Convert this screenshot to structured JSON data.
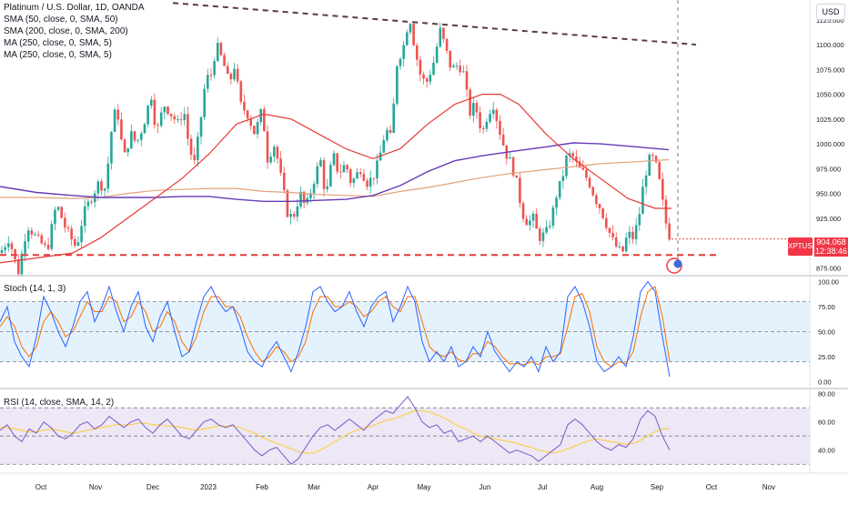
{
  "header": {
    "title": "Platinum / U.S. Dollar, 1D, OANDA",
    "indicators": [
      "SMA (50, close, 0, SMA, 50)",
      "SMA (200, close, 0, SMA, 200)",
      "MA (250, close, 0, SMA, 5)",
      "MA (250, close, 0, SMA, 5)"
    ],
    "currency": "USD"
  },
  "price_tag": {
    "symbol": "XPTUSD",
    "price": "904.068",
    "countdown": "12:38:46"
  },
  "stoch_label": "Stoch (14, 1, 3)",
  "rsi_label": "RSI (14, close, SMA, 14, 2)",
  "colors": {
    "up": "#26a69a",
    "down": "#ef5350",
    "sma50": "#e53935",
    "sma200": "#673ab7",
    "ma250": "#e5a17a",
    "stoch_k": "#2962ff",
    "stoch_d": "#ff6d00",
    "rsi": "#7e57c2",
    "rsi_ma": "#f9d24a",
    "trendline": "#5d3a3a",
    "support": "#e53935",
    "stoch_band": "#e3f2fd",
    "rsi_band": "#ede7f6"
  },
  "chart_data": [
    {
      "type": "candlestick",
      "title": "Platinum / U.S. Dollar, 1D, OANDA",
      "x_ticks": [
        "Oct",
        "Nov",
        "Dec",
        "2023",
        "Feb",
        "Mar",
        "Apr",
        "May",
        "Jun",
        "Jul",
        "Aug",
        "Sep",
        "Oct",
        "Nov"
      ],
      "y_ticks": [
        "875.000",
        "900.000",
        "925.000",
        "950.000",
        "975.000",
        "1000.000",
        "1025.000",
        "1050.000",
        "1075.000",
        "1100.000",
        "1125.000"
      ],
      "ylim": [
        868,
        1145
      ],
      "path": [
        [
          0,
          890
        ],
        [
          10,
          905
        ],
        [
          20,
          870
        ],
        [
          30,
          918
        ],
        [
          40,
          905
        ],
        [
          52,
          893
        ],
        [
          62,
          940
        ],
        [
          72,
          915
        ],
        [
          84,
          895
        ],
        [
          92,
          930
        ],
        [
          100,
          945
        ],
        [
          108,
          960
        ],
        [
          116,
          955
        ],
        [
          122,
          1010
        ],
        [
          128,
          1040
        ],
        [
          136,
          985
        ],
        [
          144,
          1010
        ],
        [
          150,
          1000
        ],
        [
          158,
          1020
        ],
        [
          166,
          1050
        ],
        [
          172,
          1010
        ],
        [
          180,
          1040
        ],
        [
          188,
          1030
        ],
        [
          196,
          1020
        ],
        [
          202,
          1035
        ],
        [
          208,
          995
        ],
        [
          214,
          980
        ],
        [
          220,
          1020
        ],
        [
          226,
          1065
        ],
        [
          232,
          1070
        ],
        [
          238,
          1100
        ],
        [
          246,
          1080
        ],
        [
          252,
          1060
        ],
        [
          258,
          1080
        ],
        [
          264,
          1040
        ],
        [
          272,
          1030
        ],
        [
          280,
          1010
        ],
        [
          288,
          1035
        ],
        [
          294,
          985
        ],
        [
          302,
          1000
        ],
        [
          310,
          960
        ],
        [
          316,
          930
        ],
        [
          322,
          925
        ],
        [
          330,
          950
        ],
        [
          336,
          935
        ],
        [
          344,
          960
        ],
        [
          352,
          985
        ],
        [
          358,
          945
        ],
        [
          366,
          990
        ],
        [
          372,
          970
        ],
        [
          380,
          980
        ],
        [
          386,
          960
        ],
        [
          396,
          975
        ],
        [
          404,
          960
        ],
        [
          412,
          970
        ],
        [
          418,
          990
        ],
        [
          424,
          1015
        ],
        [
          430,
          1005
        ],
        [
          436,
          1080
        ],
        [
          444,
          1100
        ],
        [
          450,
          1130
        ],
        [
          456,
          1095
        ],
        [
          462,
          1070
        ],
        [
          468,
          1060
        ],
        [
          476,
          1080
        ],
        [
          484,
          1115
        ],
        [
          490,
          1095
        ],
        [
          496,
          1075
        ],
        [
          504,
          1080
        ],
        [
          510,
          1070
        ],
        [
          516,
          1030
        ],
        [
          522,
          1040
        ],
        [
          530,
          1010
        ],
        [
          536,
          1030
        ],
        [
          542,
          1040
        ],
        [
          550,
          1010
        ],
        [
          556,
          990
        ],
        [
          562,
          980
        ],
        [
          568,
          960
        ],
        [
          574,
          930
        ],
        [
          580,
          920
        ],
        [
          586,
          925
        ],
        [
          592,
          905
        ],
        [
          600,
          910
        ],
        [
          606,
          925
        ],
        [
          612,
          950
        ],
        [
          618,
          965
        ],
        [
          622,
          985
        ],
        [
          628,
          990
        ],
        [
          636,
          975
        ],
        [
          642,
          970
        ],
        [
          648,
          960
        ],
        [
          654,
          945
        ],
        [
          660,
          935
        ],
        [
          666,
          920
        ],
        [
          672,
          905
        ],
        [
          678,
          895
        ],
        [
          684,
          890
        ],
        [
          690,
          910
        ],
        [
          696,
          905
        ],
        [
          702,
          925
        ],
        [
          708,
          965
        ],
        [
          714,
          985
        ],
        [
          718,
          985
        ],
        [
          722,
          975
        ],
        [
          726,
          955
        ],
        [
          730,
          930
        ],
        [
          734,
          910
        ],
        [
          738,
          904
        ]
      ],
      "sma50": [
        [
          0,
          880
        ],
        [
          40,
          885
        ],
        [
          80,
          890
        ],
        [
          110,
          905
        ],
        [
          140,
          925
        ],
        [
          170,
          945
        ],
        [
          200,
          965
        ],
        [
          230,
          990
        ],
        [
          260,
          1020
        ],
        [
          290,
          1030
        ],
        [
          320,
          1025
        ],
        [
          350,
          1010
        ],
        [
          380,
          995
        ],
        [
          410,
          985
        ],
        [
          440,
          995
        ],
        [
          470,
          1020
        ],
        [
          500,
          1040
        ],
        [
          530,
          1050
        ],
        [
          550,
          1050
        ],
        [
          570,
          1040
        ],
        [
          600,
          1010
        ],
        [
          630,
          985
        ],
        [
          660,
          965
        ],
        [
          690,
          945
        ],
        [
          720,
          935
        ],
        [
          738,
          935
        ]
      ],
      "sma200": [
        [
          0,
          957
        ],
        [
          40,
          951
        ],
        [
          80,
          948
        ],
        [
          110,
          946
        ],
        [
          140,
          946
        ],
        [
          170,
          946
        ],
        [
          200,
          947
        ],
        [
          230,
          947
        ],
        [
          260,
          944
        ],
        [
          290,
          942
        ],
        [
          320,
          942
        ],
        [
          350,
          943
        ],
        [
          380,
          944
        ],
        [
          410,
          948
        ],
        [
          440,
          958
        ],
        [
          470,
          972
        ],
        [
          500,
          983
        ],
        [
          530,
          988
        ],
        [
          560,
          992
        ],
        [
          600,
          997
        ],
        [
          630,
          1001
        ],
        [
          660,
          1000
        ],
        [
          700,
          997
        ],
        [
          735,
          994
        ]
      ],
      "ma250": [
        [
          0,
          946
        ],
        [
          40,
          946
        ],
        [
          80,
          945
        ],
        [
          110,
          946
        ],
        [
          140,
          950
        ],
        [
          170,
          953
        ],
        [
          200,
          954
        ],
        [
          230,
          955
        ],
        [
          260,
          955
        ],
        [
          290,
          952
        ],
        [
          320,
          951
        ],
        [
          350,
          949
        ],
        [
          380,
          948
        ],
        [
          410,
          947
        ],
        [
          440,
          952
        ],
        [
          470,
          956
        ],
        [
          500,
          961
        ],
        [
          530,
          966
        ],
        [
          560,
          970
        ],
        [
          600,
          974
        ],
        [
          630,
          977
        ],
        [
          660,
          980
        ],
        [
          700,
          982
        ],
        [
          735,
          984
        ]
      ],
      "resistance_trendline": [
        [
          190,
          1142
        ],
        [
          765,
          1100
        ]
      ],
      "support_level": 888,
      "last_price": 904.068
    },
    {
      "type": "line",
      "title": "Stoch (14, 1, 3)",
      "y_ticks": [
        "0.00",
        "25.00",
        "50.00",
        "75.00",
        "100.00"
      ],
      "ylim": [
        -5,
        105
      ],
      "bands": [
        20,
        80
      ],
      "x": [
        0,
        8,
        16,
        24,
        32,
        40,
        48,
        56,
        64,
        72,
        80,
        88,
        96,
        104,
        112,
        120,
        128,
        136,
        144,
        152,
        160,
        168,
        176,
        184,
        192,
        200,
        208,
        216,
        224,
        232,
        240,
        248,
        256,
        264,
        272,
        280,
        288,
        296,
        304,
        312,
        320,
        328,
        336,
        344,
        352,
        360,
        368,
        376,
        384,
        392,
        400,
        408,
        416,
        424,
        432,
        440,
        448,
        456,
        464,
        472,
        480,
        488,
        496,
        504,
        512,
        520,
        528,
        536,
        544,
        552,
        560,
        568,
        576,
        584,
        592,
        600,
        608,
        616,
        624,
        632,
        640,
        648,
        656,
        664,
        672,
        680,
        688,
        696,
        704,
        712,
        720,
        728,
        736
      ],
      "k": [
        60,
        75,
        40,
        25,
        15,
        45,
        85,
        70,
        50,
        35,
        55,
        80,
        90,
        60,
        75,
        95,
        70,
        50,
        75,
        90,
        55,
        40,
        65,
        80,
        50,
        25,
        30,
        60,
        85,
        95,
        80,
        70,
        75,
        55,
        30,
        20,
        15,
        30,
        40,
        25,
        10,
        30,
        55,
        90,
        95,
        80,
        70,
        75,
        90,
        70,
        55,
        75,
        85,
        90,
        60,
        75,
        95,
        80,
        40,
        20,
        30,
        20,
        35,
        15,
        20,
        35,
        25,
        50,
        30,
        20,
        10,
        20,
        15,
        25,
        10,
        35,
        20,
        30,
        85,
        95,
        80,
        55,
        20,
        10,
        15,
        25,
        15,
        45,
        90,
        100,
        90,
        45,
        5
      ],
      "d": [
        55,
        65,
        55,
        35,
        25,
        35,
        60,
        70,
        60,
        45,
        50,
        65,
        80,
        70,
        70,
        85,
        80,
        60,
        65,
        80,
        70,
        50,
        55,
        70,
        60,
        40,
        30,
        45,
        70,
        85,
        85,
        75,
        75,
        65,
        45,
        30,
        20,
        25,
        35,
        30,
        20,
        25,
        40,
        70,
        85,
        85,
        75,
        75,
        80,
        75,
        65,
        70,
        80,
        85,
        75,
        70,
        85,
        85,
        60,
        35,
        28,
        25,
        30,
        22,
        20,
        28,
        28,
        40,
        35,
        25,
        18,
        18,
        17,
        20,
        17,
        25,
        25,
        28,
        55,
        85,
        88,
        70,
        35,
        20,
        15,
        20,
        18,
        30,
        65,
        90,
        95,
        65,
        20
      ]
    },
    {
      "type": "line",
      "title": "RSI (14, close, SMA, 14, 2)",
      "y_ticks": [
        "40.00",
        "60.00",
        "80.00"
      ],
      "ylim": [
        25,
        83
      ],
      "bands": [
        30,
        70
      ],
      "x": [
        0,
        8,
        16,
        24,
        32,
        40,
        48,
        56,
        64,
        72,
        80,
        88,
        96,
        104,
        112,
        120,
        128,
        136,
        144,
        152,
        160,
        168,
        176,
        184,
        192,
        200,
        208,
        216,
        224,
        232,
        240,
        248,
        256,
        264,
        272,
        280,
        288,
        296,
        304,
        312,
        320,
        328,
        336,
        344,
        352,
        360,
        368,
        376,
        384,
        392,
        400,
        408,
        416,
        424,
        432,
        440,
        448,
        456,
        464,
        472,
        480,
        488,
        496,
        504,
        512,
        520,
        528,
        536,
        544,
        552,
        560,
        568,
        576,
        584,
        592,
        600,
        608,
        616,
        624,
        632,
        640,
        648,
        656,
        664,
        672,
        680,
        688,
        696,
        704,
        712,
        720,
        728,
        736
      ],
      "rsi": [
        54,
        58,
        50,
        46,
        55,
        52,
        60,
        56,
        50,
        48,
        52,
        58,
        60,
        55,
        58,
        64,
        60,
        56,
        60,
        62,
        56,
        52,
        58,
        62,
        56,
        50,
        48,
        54,
        60,
        62,
        58,
        56,
        58,
        52,
        46,
        40,
        36,
        40,
        42,
        36,
        30,
        34,
        42,
        50,
        56,
        58,
        54,
        58,
        62,
        58,
        54,
        60,
        64,
        68,
        66,
        72,
        78,
        70,
        60,
        56,
        58,
        52,
        54,
        46,
        48,
        50,
        46,
        50,
        46,
        42,
        38,
        40,
        38,
        36,
        32,
        36,
        40,
        44,
        58,
        62,
        58,
        52,
        46,
        42,
        40,
        44,
        42,
        48,
        62,
        68,
        64,
        50,
        40
      ],
      "rsi_ma": [
        56,
        56,
        55,
        54,
        53,
        53,
        54,
        55,
        54,
        53,
        52,
        53,
        54,
        55,
        56,
        57,
        58,
        58,
        58,
        59,
        59,
        58,
        58,
        57,
        57,
        56,
        55,
        54,
        55,
        56,
        57,
        57,
        57,
        56,
        54,
        52,
        49,
        47,
        45,
        43,
        41,
        39,
        38,
        38,
        40,
        43,
        46,
        49,
        52,
        54,
        56,
        57,
        59,
        61,
        62,
        64,
        66,
        68,
        68,
        67,
        65,
        63,
        60,
        57,
        55,
        52,
        50,
        49,
        48,
        47,
        46,
        45,
        43,
        42,
        40,
        39,
        38,
        39,
        41,
        43,
        45,
        47,
        48,
        47,
        46,
        45,
        44,
        45,
        47,
        50,
        53,
        55,
        55
      ]
    }
  ]
}
